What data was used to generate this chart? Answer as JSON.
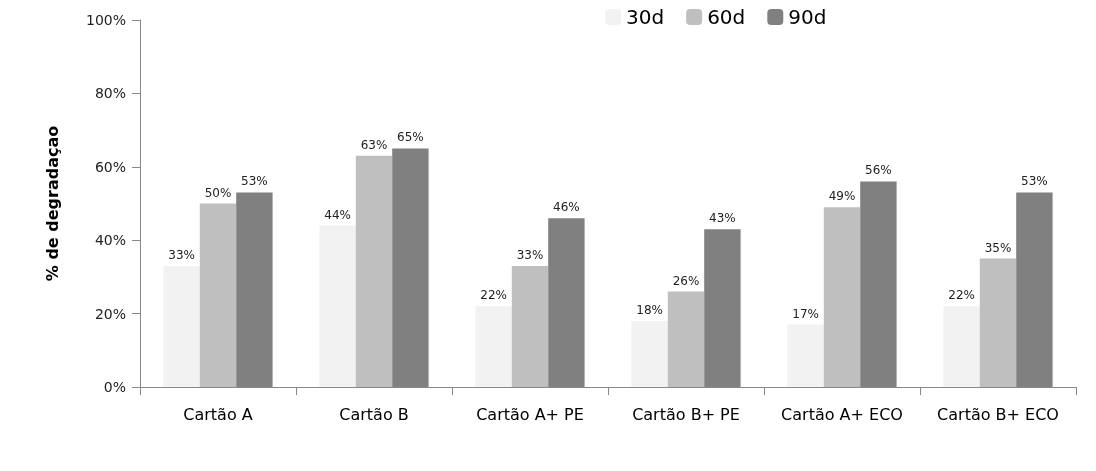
{
  "chart_data": {
    "type": "bar",
    "ylabel": "% de degradaçao",
    "categories": [
      "Cartão A",
      "Cartão B",
      "Cartão A+ PE",
      "Cartão B+ PE",
      "Cartão A+ ECO",
      "Cartão B+ ECO"
    ],
    "series": [
      {
        "name": "30d",
        "color": "#f2f2f2",
        "values": [
          33,
          44,
          22,
          18,
          17,
          22
        ],
        "value_labels": [
          "33%",
          "44%",
          "22%",
          "18%",
          "17%",
          "22%"
        ]
      },
      {
        "name": "60d",
        "color": "#bfbfbf",
        "values": [
          50,
          63,
          33,
          26,
          49,
          35
        ],
        "value_labels": [
          "50%",
          "63%",
          "33%",
          "26%",
          "49%",
          "35%"
        ]
      },
      {
        "name": "90d",
        "color": "#808080",
        "values": [
          53,
          65,
          46,
          43,
          56,
          53
        ],
        "value_labels": [
          "53%",
          "65%",
          "46%",
          "43%",
          "56%",
          "53%"
        ]
      }
    ],
    "ylim": [
      0,
      100
    ],
    "yticks": [
      {
        "value": 0,
        "label": "0%"
      },
      {
        "value": 20,
        "label": "20%"
      },
      {
        "value": 40,
        "label": "40%"
      },
      {
        "value": 60,
        "label": "60%"
      },
      {
        "value": 80,
        "label": "80%"
      },
      {
        "value": 100,
        "label": "100%"
      }
    ],
    "grid": false,
    "legend": "top"
  }
}
